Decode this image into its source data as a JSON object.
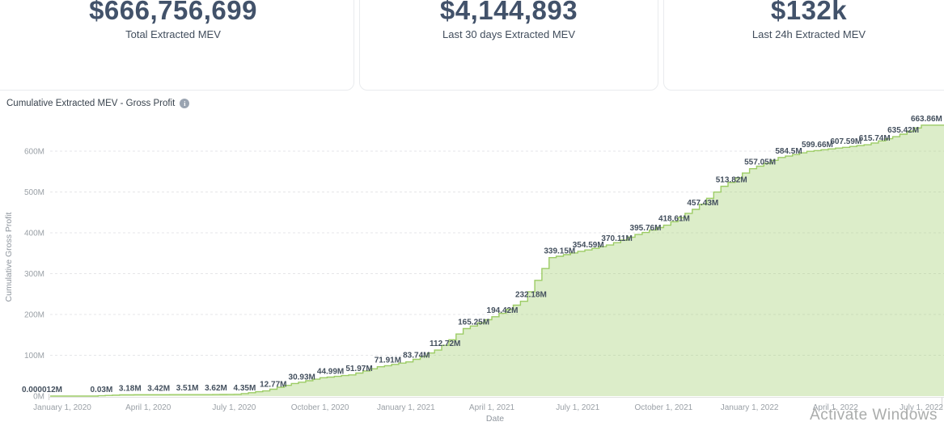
{
  "cards": [
    {
      "value": "$666,756,699",
      "label": "Total Extracted MEV"
    },
    {
      "value": "$4,144,893",
      "label": "Last 30 days Extracted MEV"
    },
    {
      "value": "$132k",
      "label": "Last 24h Extracted MEV"
    }
  ],
  "chart": {
    "title": "Cumulative Extracted MEV - Gross Profit",
    "info_glyph": "i"
  },
  "chart_data": {
    "type": "area",
    "title": "Cumulative Extracted MEV - Gross Profit",
    "xlabel": "Date",
    "ylabel": "Cumulative Gross Profit",
    "x": [
      "2020-01-01",
      "2020-02-01",
      "2020-03-01",
      "2020-04-01",
      "2020-05-01",
      "2020-06-01",
      "2020-07-01",
      "2020-08-01",
      "2020-09-01",
      "2020-10-01",
      "2020-11-01",
      "2020-12-01",
      "2021-01-01",
      "2021-02-01",
      "2021-03-01",
      "2021-04-01",
      "2021-05-01",
      "2021-06-01",
      "2021-07-01",
      "2021-08-01",
      "2021-09-01",
      "2021-10-01",
      "2021-11-01",
      "2021-12-01",
      "2022-01-01",
      "2022-02-01",
      "2022-03-01",
      "2022-04-01",
      "2022-05-01",
      "2022-06-01",
      "2022-07-01"
    ],
    "values": [
      1.2e-05,
      0.03,
      3.18,
      3.42,
      3.51,
      3.62,
      4.35,
      12.77,
      30.93,
      44.99,
      51.97,
      71.91,
      83.74,
      112.72,
      165.25,
      194.42,
      232.18,
      339.15,
      354.59,
      370.11,
      395.76,
      418.61,
      457.43,
      513.82,
      557.05,
      584.5,
      599.66,
      607.59,
      615.74,
      635.42,
      663.86
    ],
    "point_labels": [
      "0.000012M",
      "0.03M",
      "3.18M",
      "3.42M",
      "3.51M",
      "3.62M",
      "4.35M",
      "12.77M",
      "30.93M",
      "44.99M",
      "51.97M",
      "71.91M",
      "83.74M",
      "112.72M",
      "165.25M",
      "194.42M",
      "232.18M",
      "339.15M",
      "354.59M",
      "370.11M",
      "395.76M",
      "418.61M",
      "457.43M",
      "513.82M",
      "557.05M",
      "584.5M",
      "599.66M",
      "607.59M",
      "615.74M",
      "635.42M",
      "663.86M"
    ],
    "x_tick_indices": [
      0,
      3,
      6,
      9,
      12,
      15,
      18,
      21,
      24,
      27,
      30
    ],
    "x_tick_labels": [
      "January 1, 2020",
      "April 1, 2020",
      "July 1, 2020",
      "October 1, 2020",
      "January 1, 2021",
      "April 1, 2021",
      "July 1, 2021",
      "October 1, 2021",
      "January 1, 2022",
      "April 1, 2022",
      "July 1, 2022"
    ],
    "y_ticks": [
      0,
      100,
      200,
      300,
      400,
      500,
      600
    ],
    "y_tick_labels": [
      "0M",
      "100M",
      "200M",
      "300M",
      "400M",
      "500M",
      "600M"
    ],
    "ylim": [
      0,
      680
    ],
    "grid": "dashed-horizontal",
    "line_color": "#9ccc65",
    "fill_color": "rgba(156,204,101,0.35)"
  },
  "watermark": {
    "text": "Activate Windows"
  }
}
